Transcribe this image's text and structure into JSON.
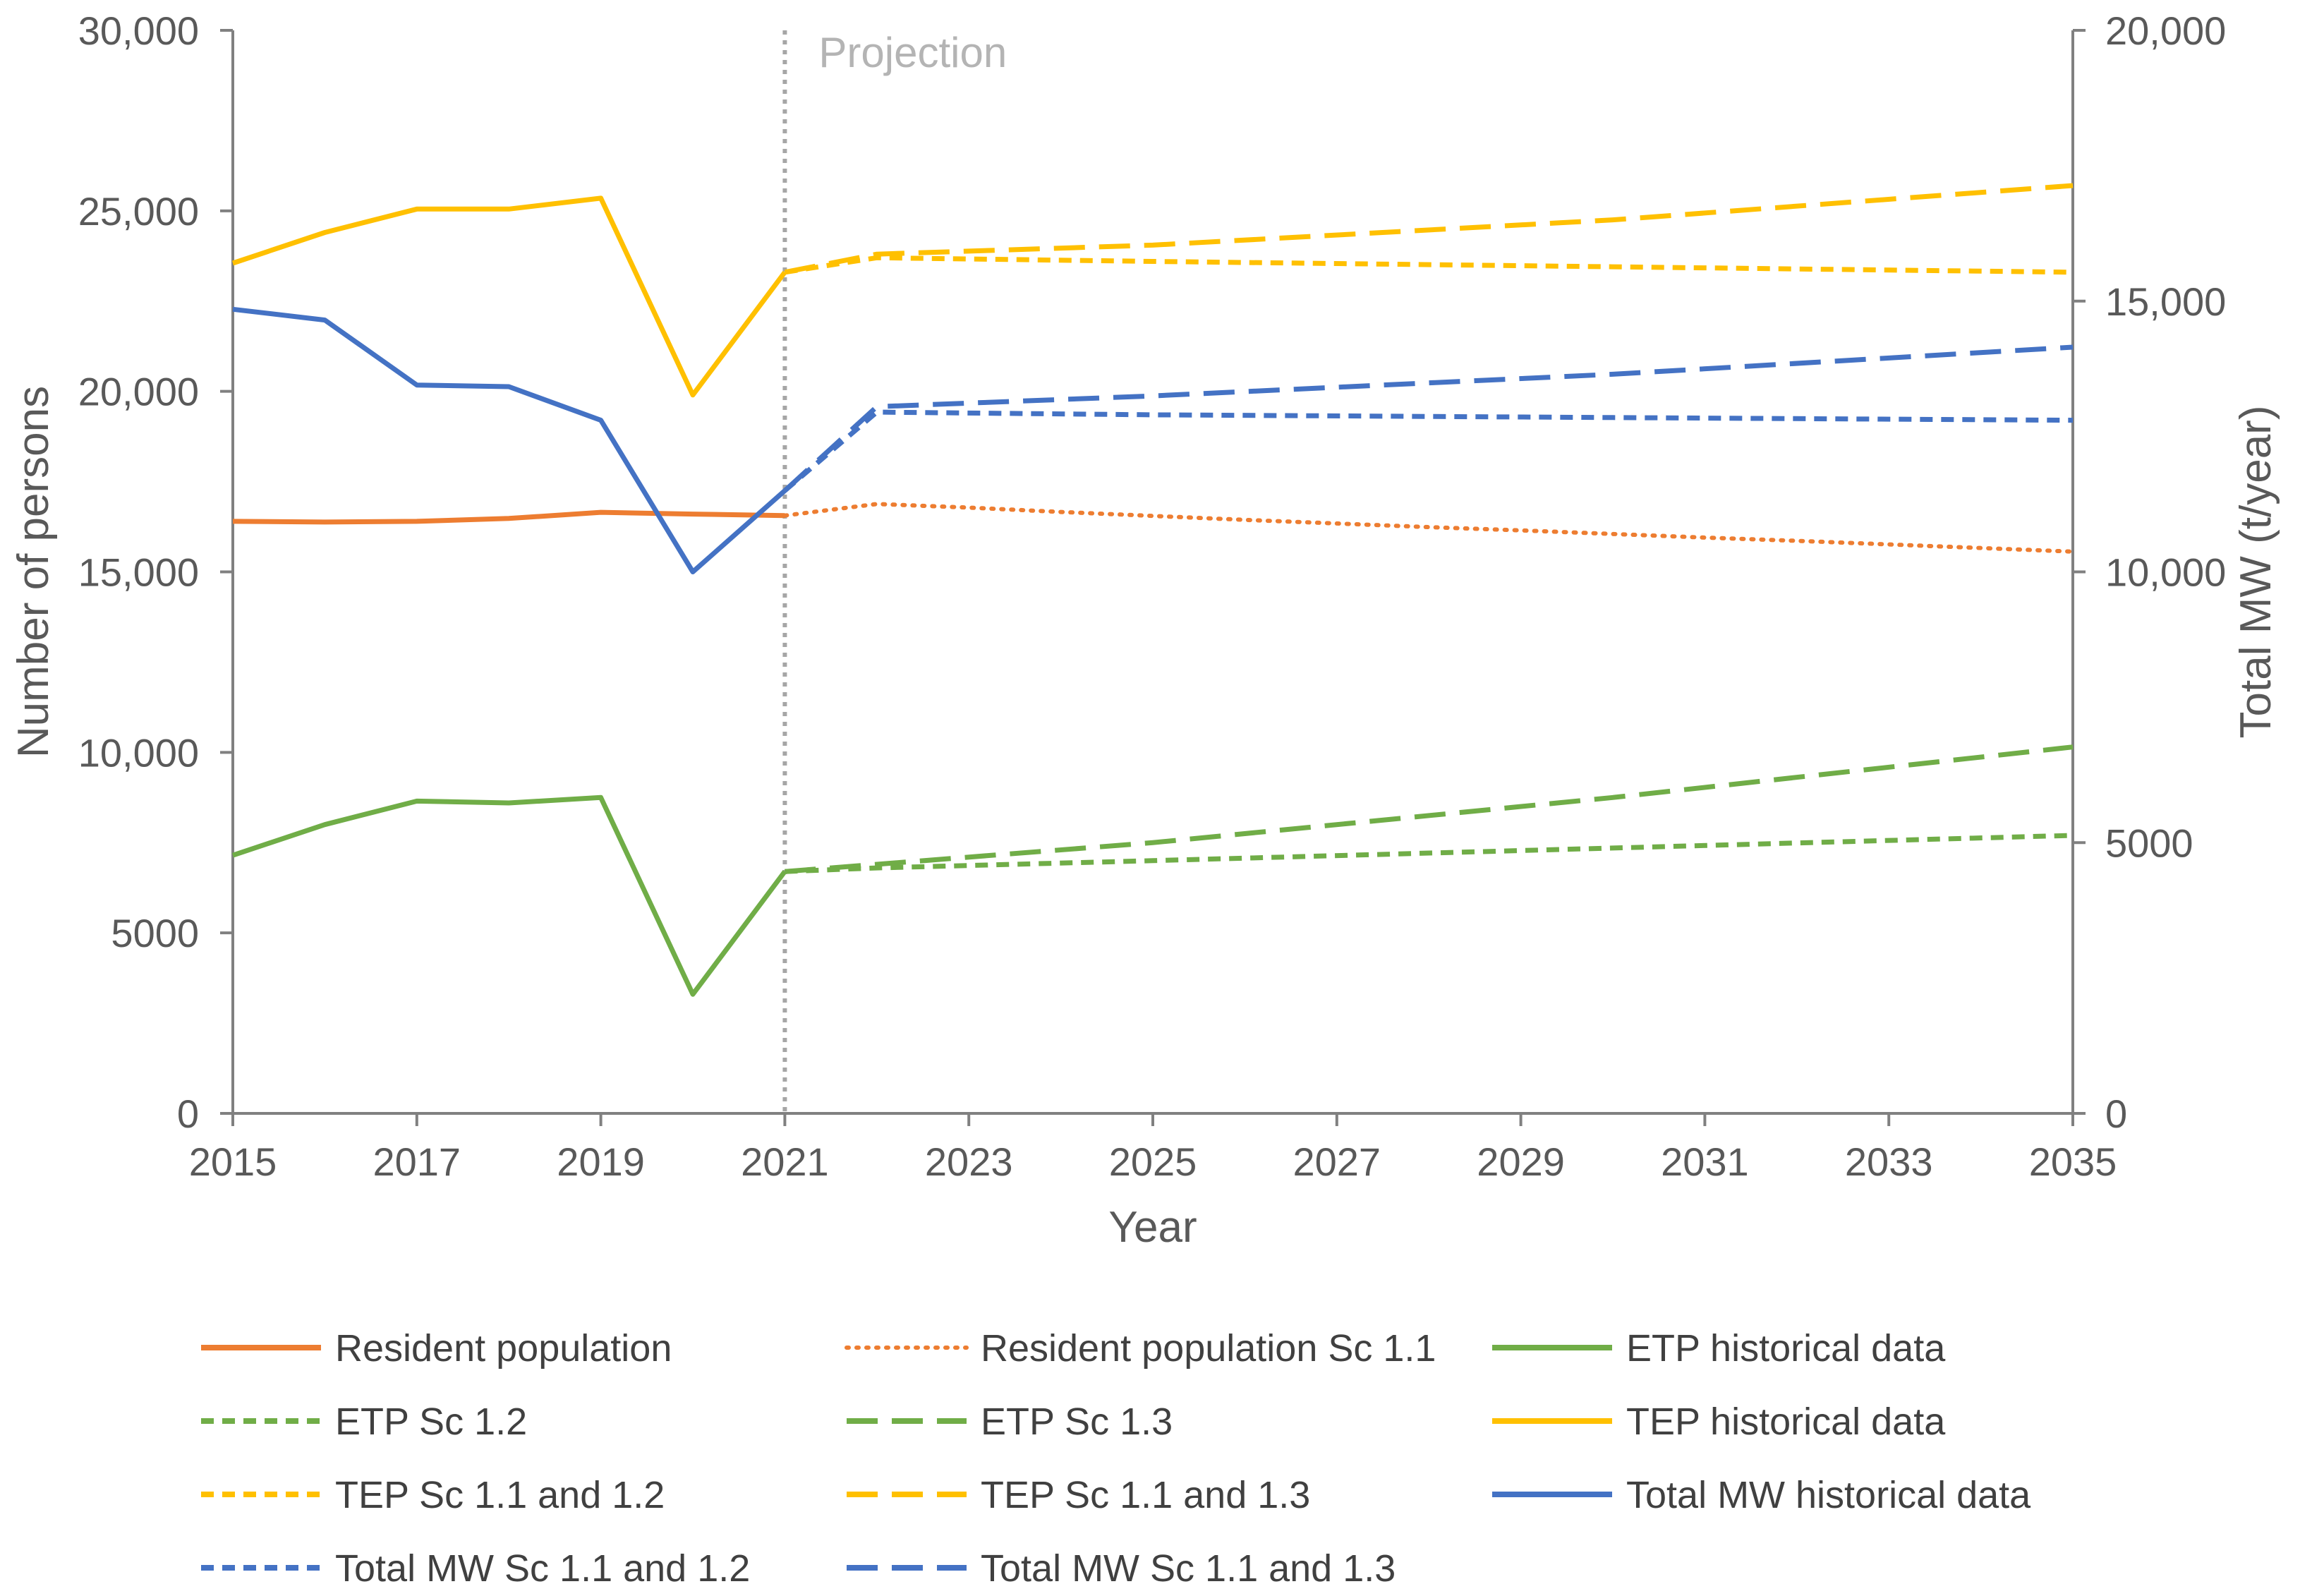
{
  "chart_data": {
    "type": "line",
    "xlabel": "Year",
    "ylabel": "Number of persons",
    "y2label": "Total MW (t/year)",
    "xlim": [
      2015,
      2035
    ],
    "ylim": [
      0,
      30000
    ],
    "y2lim": [
      0,
      20000
    ],
    "x_ticks": [
      2015,
      2017,
      2019,
      2021,
      2023,
      2025,
      2027,
      2029,
      2031,
      2033,
      2035
    ],
    "x_tick_labels": [
      "2015",
      "2017",
      "2019",
      "2021",
      "2023",
      "2025",
      "2027",
      "2029",
      "2031",
      "2033",
      "2035"
    ],
    "y_ticks": [
      0,
      5000,
      10000,
      15000,
      20000,
      25000,
      30000
    ],
    "y_tick_labels": [
      "0",
      "5000",
      "10,000",
      "15,000",
      "20,000",
      "25,000",
      "30,000"
    ],
    "y2_ticks": [
      0,
      5000,
      10000,
      15000,
      20000
    ],
    "y2_tick_labels": [
      "0",
      "5000",
      "10,000",
      "15,000",
      "20,000"
    ],
    "annotation": {
      "text": "Projection",
      "x": 2021
    },
    "legend_position": "bottom",
    "grid": false,
    "series": [
      {
        "name": "Resident population",
        "axis": "left",
        "color": "#ED7D31",
        "dash": "solid",
        "x": [
          2015,
          2016,
          2017,
          2018,
          2019,
          2020,
          2021
        ],
        "y": [
          16400,
          16380,
          16400,
          16480,
          16650,
          16600,
          16560
        ]
      },
      {
        "name": "Resident population Sc 1.1",
        "axis": "left",
        "color": "#ED7D31",
        "dash": "dot",
        "x": [
          2021,
          2022,
          2023,
          2024,
          2025,
          2026,
          2027,
          2028,
          2029,
          2030,
          2031,
          2032,
          2033,
          2034,
          2035
        ],
        "y": [
          16560,
          16880,
          16780,
          16660,
          16550,
          16440,
          16340,
          16240,
          16150,
          16050,
          15950,
          15860,
          15760,
          15660,
          15560
        ]
      },
      {
        "name": "ETP historical data",
        "axis": "left",
        "color": "#70AD47",
        "dash": "solid",
        "x": [
          2015,
          2016,
          2017,
          2018,
          2019,
          2020,
          2021
        ],
        "y": [
          7150,
          8000,
          8650,
          8600,
          8750,
          3300,
          6700
        ]
      },
      {
        "name": "ETP Sc 1.2",
        "axis": "left",
        "color": "#70AD47",
        "dash": "short",
        "x": [
          2021,
          2022,
          2025,
          2030,
          2035
        ],
        "y": [
          6700,
          6800,
          7000,
          7350,
          7700
        ]
      },
      {
        "name": "ETP Sc 1.3",
        "axis": "left",
        "color": "#70AD47",
        "dash": "long",
        "x": [
          2021,
          2022,
          2025,
          2030,
          2035
        ],
        "y": [
          6700,
          6900,
          7500,
          8750,
          10150
        ]
      },
      {
        "name": "TEP historical data",
        "axis": "left",
        "color": "#FFC000",
        "dash": "solid",
        "x": [
          2015,
          2016,
          2017,
          2018,
          2019,
          2020,
          2021
        ],
        "y": [
          23550,
          24400,
          25050,
          25050,
          25350,
          19900,
          23300
        ]
      },
      {
        "name": "TEP Sc 1.1 and 1.2",
        "axis": "left",
        "color": "#FFC000",
        "dash": "short",
        "x": [
          2021,
          2022,
          2025,
          2030,
          2035
        ],
        "y": [
          23300,
          23700,
          23600,
          23450,
          23300
        ]
      },
      {
        "name": "TEP Sc 1.1 and 1.3",
        "axis": "left",
        "color": "#FFC000",
        "dash": "long",
        "x": [
          2021,
          2022,
          2025,
          2030,
          2035
        ],
        "y": [
          23300,
          23800,
          24050,
          24750,
          25700
        ]
      },
      {
        "name": "Total MW historical data",
        "axis": "right",
        "color": "#4472C4",
        "dash": "solid",
        "x": [
          2015,
          2016,
          2017,
          2018,
          2019,
          2020,
          2021
        ],
        "y": [
          14850,
          14650,
          13450,
          13420,
          12800,
          10000,
          11500
        ]
      },
      {
        "name": "Total MW Sc 1.1 and 1.2",
        "axis": "right",
        "color": "#4472C4",
        "dash": "short",
        "x": [
          2021,
          2022,
          2025,
          2030,
          2035
        ],
        "y": [
          11500,
          12950,
          12900,
          12850,
          12800
        ]
      },
      {
        "name": "Total MW Sc 1.1 and 1.3",
        "axis": "right",
        "color": "#4472C4",
        "dash": "long",
        "x": [
          2021,
          2022,
          2025,
          2030,
          2035
        ],
        "y": [
          11500,
          13050,
          13250,
          13650,
          14150
        ]
      }
    ]
  }
}
